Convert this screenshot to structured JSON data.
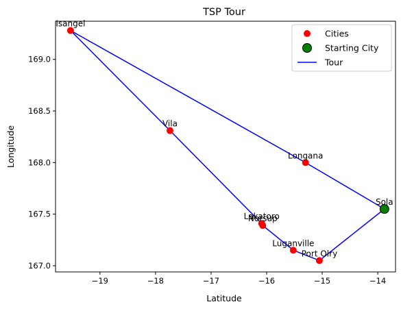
{
  "chart_data": {
    "type": "scatter",
    "title": "TSP Tour",
    "xlabel": "Latitude",
    "ylabel": "Longitude",
    "xlim": [
      -19.8,
      -13.68
    ],
    "ylim": [
      166.94,
      169.37
    ],
    "xticks": [
      -19,
      -18,
      -17,
      -16,
      -15,
      -14
    ],
    "xtick_labels": [
      "−19",
      "−18",
      "−17",
      "−16",
      "−15",
      "−14"
    ],
    "yticks": [
      167.0,
      167.5,
      168.0,
      168.5,
      169.0
    ],
    "ytick_labels": [
      "167.0",
      "167.5",
      "168.0",
      "168.5",
      "169.0"
    ],
    "grid": false,
    "legend_position": "top-right",
    "legend": [
      {
        "label": "Cities",
        "marker": "circle",
        "color": "#ff0000"
      },
      {
        "label": "Starting City",
        "marker": "circle",
        "color": "#008000"
      },
      {
        "label": "Tour",
        "marker": "line",
        "color": "#0000ff"
      }
    ],
    "cities": [
      {
        "name": "Sola",
        "x": -13.88,
        "y": 167.55,
        "start": true
      },
      {
        "name": "Port Olry",
        "x": -15.05,
        "y": 167.05
      },
      {
        "name": "Luganville",
        "x": -15.52,
        "y": 167.15
      },
      {
        "name": "Norsup",
        "x": -16.07,
        "y": 167.39
      },
      {
        "name": "Lakatoro",
        "x": -16.09,
        "y": 167.41
      },
      {
        "name": "Vila",
        "x": -17.74,
        "y": 168.31
      },
      {
        "name": "Isangel",
        "x": -19.53,
        "y": 169.28
      },
      {
        "name": "Longana",
        "x": -15.3,
        "y": 168.0
      }
    ],
    "tour_order": [
      "Sola",
      "Port Olry",
      "Luganville",
      "Norsup",
      "Lakatoro",
      "Vila",
      "Isangel",
      "Longana",
      "Sola"
    ],
    "colors": {
      "city": "#ff0000",
      "start": "#008000",
      "tour": "#0000ff"
    }
  }
}
